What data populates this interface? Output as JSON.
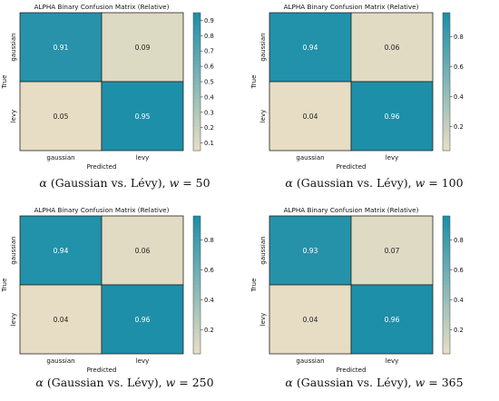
{
  "colors": {
    "low": "#e6ddc4",
    "high": "#1e8fa9",
    "border": "#222222"
  },
  "chart_data": [
    {
      "type": "heatmap",
      "title": "ALPHA Binary Confusion Matrix (Relative)",
      "xlabel": "Predicted",
      "ylabel": "True",
      "x_categories": [
        "gaussian",
        "levy"
      ],
      "y_categories": [
        "gaussian",
        "levy"
      ],
      "values": [
        [
          0.91,
          0.09
        ],
        [
          0.05,
          0.95
        ]
      ],
      "cell_labels": [
        [
          "0.91",
          "0.09"
        ],
        [
          "0.05",
          "0.95"
        ]
      ],
      "colorbar": {
        "min": 0.05,
        "max": 0.95,
        "ticks": [
          "0.1",
          "0.2",
          "0.3",
          "0.4",
          "0.5",
          "0.6",
          "0.7",
          "0.8",
          "0.9"
        ]
      },
      "caption": {
        "alpha": "α",
        "text": " (Gaussian vs. Lévy), ",
        "w": "w",
        "eq": " = 50"
      }
    },
    {
      "type": "heatmap",
      "title": "ALPHA Binary Confusion Matrix (Relative)",
      "xlabel": "Predicted",
      "ylabel": "True",
      "x_categories": [
        "gaussian",
        "levy"
      ],
      "y_categories": [
        "gaussian",
        "levy"
      ],
      "values": [
        [
          0.94,
          0.06
        ],
        [
          0.04,
          0.96
        ]
      ],
      "cell_labels": [
        [
          "0.94",
          "0.06"
        ],
        [
          "0.04",
          "0.96"
        ]
      ],
      "colorbar": {
        "min": 0.04,
        "max": 0.96,
        "ticks": [
          "0.2",
          "0.4",
          "0.6",
          "0.8"
        ]
      },
      "caption": {
        "alpha": "α",
        "text": " (Gaussian vs. Lévy), ",
        "w": "w",
        "eq": " = 100"
      }
    },
    {
      "type": "heatmap",
      "title": "ALPHA Binary Confusion Matrix (Relative)",
      "xlabel": "Predicted",
      "ylabel": "True",
      "x_categories": [
        "gaussian",
        "levy"
      ],
      "y_categories": [
        "gaussian",
        "levy"
      ],
      "values": [
        [
          0.94,
          0.06
        ],
        [
          0.04,
          0.96
        ]
      ],
      "cell_labels": [
        [
          "0.94",
          "0.06"
        ],
        [
          "0.04",
          "0.96"
        ]
      ],
      "colorbar": {
        "min": 0.04,
        "max": 0.96,
        "ticks": [
          "0.2",
          "0.4",
          "0.6",
          "0.8"
        ]
      },
      "caption": {
        "alpha": "α",
        "text": " (Gaussian vs. Lévy), ",
        "w": "w",
        "eq": " = 250"
      }
    },
    {
      "type": "heatmap",
      "title": "ALPHA Binary Confusion Matrix (Relative)",
      "xlabel": "Predicted",
      "ylabel": "True",
      "x_categories": [
        "gaussian",
        "levy"
      ],
      "y_categories": [
        "gaussian",
        "levy"
      ],
      "values": [
        [
          0.93,
          0.07
        ],
        [
          0.04,
          0.96
        ]
      ],
      "cell_labels": [
        [
          "0.93",
          "0.07"
        ],
        [
          "0.04",
          "0.96"
        ]
      ],
      "colorbar": {
        "min": 0.04,
        "max": 0.96,
        "ticks": [
          "0.2",
          "0.4",
          "0.6",
          "0.8"
        ]
      },
      "caption": {
        "alpha": "α",
        "text": " (Gaussian vs. Lévy), ",
        "w": "w",
        "eq": " = 365"
      }
    }
  ]
}
